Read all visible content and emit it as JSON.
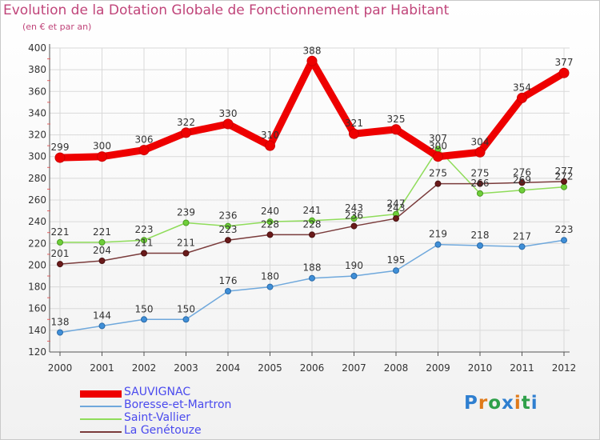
{
  "title": "Evolution de la Dotation Globale de Fonctionnement par Habitant",
  "subtitle": "(en € et par an)",
  "logo": "Proxiti",
  "colors": {
    "title": "#c0457a",
    "axis": "#333333",
    "grid": "#d9d9d9"
  },
  "chart_data": {
    "type": "line",
    "title": "Evolution de la Dotation Globale de Fonctionnement par Habitant",
    "subtitle": "(en € et par an)",
    "x": [
      "2000",
      "2001",
      "2002",
      "2003",
      "2004",
      "2005",
      "2006",
      "2007",
      "2008",
      "2009",
      "2010",
      "2011",
      "2012"
    ],
    "ylim": [
      120,
      400
    ],
    "yticks": [
      120,
      140,
      160,
      180,
      200,
      220,
      240,
      260,
      280,
      300,
      320,
      340,
      360,
      380,
      400
    ],
    "grid": true,
    "legend_position": "bottom-left",
    "series": [
      {
        "name": "SAUVIGNAC",
        "color": "#ee0000",
        "label_color": "#4a4aee",
        "values": [
          299,
          300,
          306,
          322,
          330,
          310,
          388,
          321,
          325,
          300,
          304,
          354,
          377
        ]
      },
      {
        "name": "Boresse-et-Martron",
        "color": "#6fa8dc",
        "label_color": "#4a4aee",
        "values": [
          138,
          144,
          150,
          150,
          176,
          180,
          188,
          190,
          195,
          219,
          218,
          217,
          223
        ]
      },
      {
        "name": "Saint-Vallier",
        "color": "#8fdc5a",
        "label_color": "#4a4aee",
        "values": [
          221,
          221,
          223,
          239,
          236,
          240,
          241,
          243,
          247,
          307,
          266,
          269,
          272
        ]
      },
      {
        "name": "La Genétouze",
        "color": "#7a3b3b",
        "label_color": "#4a4aee",
        "values": [
          201,
          204,
          211,
          211,
          223,
          228,
          228,
          236,
          243,
          275,
          275,
          276,
          277
        ]
      }
    ]
  }
}
